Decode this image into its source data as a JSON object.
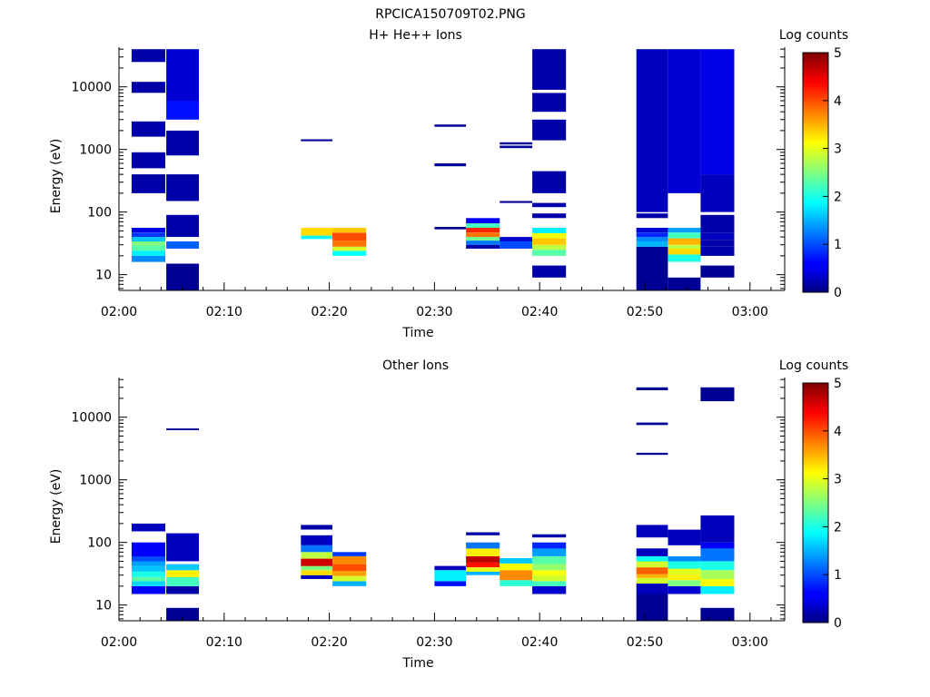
{
  "figure": {
    "title": "RPCICA150709T02.PNG"
  },
  "chart_data": [
    {
      "type": "heatmap",
      "title": "H+ He++ Ions",
      "xlabel": "Time",
      "ylabel": "Energy (eV)",
      "xticks": [
        "02:00",
        "02:10",
        "02:20",
        "02:30",
        "02:40",
        "02:50",
        "03:00"
      ],
      "xlim_min": [
        0,
        63.3
      ],
      "yscale": "log",
      "ylim": [
        5.6,
        43000
      ],
      "yticks": [
        10,
        100,
        1000,
        10000
      ],
      "yticklabels": [
        "10",
        "100",
        "1000",
        "10000"
      ],
      "colorbar": {
        "label": "Log counts",
        "range": [
          0,
          5
        ],
        "ticks": [
          "0",
          "1",
          "2",
          "3",
          "4",
          "5"
        ]
      },
      "columns": [
        {
          "t": [
            1.2,
            4.4
          ],
          "cells": [
            [
              16,
              20,
              1.3
            ],
            [
              20,
              24,
              1.8
            ],
            [
              24,
              29,
              2.3
            ],
            [
              29,
              34,
              2.5
            ],
            [
              34,
              40,
              1.6
            ],
            [
              40,
              47,
              0.9
            ],
            [
              47,
              56,
              0.5
            ],
            [
              200,
              400,
              0.2
            ],
            [
              500,
              900,
              0.2
            ],
            [
              1600,
              2800,
              0.2
            ],
            [
              8000,
              12000,
              0.2
            ],
            [
              25000,
              40000,
              0.2
            ]
          ]
        },
        {
          "t": [
            4.5,
            7.6
          ],
          "cells": [
            [
              5.6,
              15,
              0.1
            ],
            [
              26,
              34,
              1.1
            ],
            [
              40,
              90,
              0.2
            ],
            [
              150,
              400,
              0.2
            ],
            [
              800,
              2000,
              0.2
            ],
            [
              3000,
              6000,
              0.7
            ],
            [
              6000,
              40000,
              0.4
            ]
          ]
        },
        {
          "t": [
            17.3,
            20.3
          ],
          "cells": [
            [
              37,
              42,
              1.9
            ],
            [
              42,
              56,
              3.3
            ],
            [
              1350,
              1450,
              0.1
            ]
          ]
        },
        {
          "t": [
            20.3,
            23.5
          ],
          "cells": [
            [
              20,
              24,
              1.9
            ],
            [
              24,
              28,
              2.9
            ],
            [
              28,
              35,
              3.8
            ],
            [
              35,
              47,
              4.0
            ],
            [
              47,
              56,
              3.4
            ]
          ]
        },
        {
          "t": [
            30.0,
            33.0
          ],
          "cells": [
            [
              53,
              58,
              0.1
            ],
            [
              540,
              600,
              0.1
            ],
            [
              2300,
              2500,
              0.1
            ]
          ]
        },
        {
          "t": [
            33.0,
            36.2
          ],
          "cells": [
            [
              26,
              30,
              0.2
            ],
            [
              30,
              35,
              1.2
            ],
            [
              35,
              40,
              2.4
            ],
            [
              40,
              47,
              3.8
            ],
            [
              47,
              56,
              4.2
            ],
            [
              56,
              66,
              2.2
            ],
            [
              66,
              80,
              0.6
            ]
          ]
        },
        {
          "t": [
            36.2,
            39.3
          ],
          "cells": [
            [
              26,
              34,
              1.0
            ],
            [
              34,
              40,
              0.4
            ],
            [
              140,
              150,
              0.1
            ],
            [
              1050,
              1150,
              0.1
            ],
            [
              1200,
              1300,
              0.1
            ]
          ]
        },
        {
          "t": [
            39.3,
            42.5
          ],
          "cells": [
            [
              9,
              14,
              0.2
            ],
            [
              20,
              25,
              2.3
            ],
            [
              25,
              30,
              2.8
            ],
            [
              30,
              38,
              3.4
            ],
            [
              38,
              46,
              3.1
            ],
            [
              46,
              56,
              1.8
            ],
            [
              80,
              95,
              0.2
            ],
            [
              120,
              140,
              0.2
            ],
            [
              200,
              450,
              0.2
            ],
            [
              1400,
              3000,
              0.2
            ],
            [
              4000,
              8000,
              0.2
            ],
            [
              9000,
              40000,
              0.2
            ]
          ]
        },
        {
          "t": [
            49.2,
            52.2
          ],
          "cells": [
            [
              5.6,
              15,
              0.1
            ],
            [
              15,
              28,
              0.1
            ],
            [
              28,
              34,
              1.5
            ],
            [
              34,
              40,
              1.3
            ],
            [
              40,
              47,
              0.8
            ],
            [
              47,
              56,
              0.4
            ],
            [
              80,
              95,
              0.2
            ],
            [
              100,
              40000,
              0.3
            ]
          ]
        },
        {
          "t": [
            52.2,
            55.3
          ],
          "cells": [
            [
              5.6,
              9,
              0.1
            ],
            [
              16,
              21,
              2.0
            ],
            [
              21,
              26,
              3.3
            ],
            [
              26,
              30,
              2.8
            ],
            [
              30,
              38,
              3.5
            ],
            [
              38,
              47,
              2.2
            ],
            [
              47,
              56,
              1.4
            ],
            [
              200,
              40000,
              0.4
            ]
          ]
        },
        {
          "t": [
            55.3,
            58.5
          ],
          "cells": [
            [
              9,
              14,
              0.1
            ],
            [
              20,
              28,
              0.2
            ],
            [
              28,
              36,
              0.2
            ],
            [
              36,
              47,
              0.3
            ],
            [
              47,
              90,
              0.2
            ],
            [
              100,
              400,
              0.3
            ],
            [
              400,
              40000,
              0.5
            ]
          ]
        }
      ]
    },
    {
      "type": "heatmap",
      "title": "Other Ions",
      "xlabel": "Time",
      "ylabel": "Energy (eV)",
      "xticks": [
        "02:00",
        "02:10",
        "02:20",
        "02:30",
        "02:40",
        "02:50",
        "03:00"
      ],
      "xlim_min": [
        0,
        63.3
      ],
      "yscale": "log",
      "ylim": [
        5.6,
        43000
      ],
      "yticks": [
        10,
        100,
        1000,
        10000
      ],
      "yticklabels": [
        "10",
        "100",
        "1000",
        "10000"
      ],
      "colorbar": {
        "label": "Log counts",
        "range": [
          0,
          5
        ],
        "ticks": [
          "0",
          "1",
          "2",
          "3",
          "4",
          "5"
        ]
      },
      "columns": [
        {
          "t": [
            1.2,
            4.4
          ],
          "cells": [
            [
              15,
              20,
              0.6
            ],
            [
              20,
              24,
              1.7
            ],
            [
              24,
              28,
              2.3
            ],
            [
              28,
              34,
              2.0
            ],
            [
              34,
              42,
              1.6
            ],
            [
              42,
              50,
              1.4
            ],
            [
              50,
              60,
              1.0
            ],
            [
              60,
              100,
              0.6
            ],
            [
              150,
              200,
              0.3
            ]
          ]
        },
        {
          "t": [
            4.5,
            7.6
          ],
          "cells": [
            [
              5.6,
              9,
              0.1
            ],
            [
              15,
              20,
              0.2
            ],
            [
              20,
              28,
              2.2
            ],
            [
              28,
              36,
              3.2
            ],
            [
              36,
              45,
              1.6
            ],
            [
              50,
              140,
              0.3
            ],
            [
              6200,
              6600,
              0.1
            ]
          ]
        },
        {
          "t": [
            17.3,
            20.3
          ],
          "cells": [
            [
              26,
              30,
              0.3
            ],
            [
              30,
              36,
              3.3
            ],
            [
              36,
              42,
              2.5
            ],
            [
              42,
              55,
              4.6
            ],
            [
              55,
              70,
              2.8
            ],
            [
              70,
              90,
              1.2
            ],
            [
              90,
              130,
              0.3
            ],
            [
              160,
              190,
              0.2
            ]
          ]
        },
        {
          "t": [
            20.3,
            23.5
          ],
          "cells": [
            [
              20,
              24,
              1.5
            ],
            [
              24,
              29,
              2.9
            ],
            [
              29,
              35,
              3.6
            ],
            [
              35,
              45,
              4.0
            ],
            [
              45,
              60,
              3.7
            ],
            [
              60,
              70,
              0.9
            ]
          ]
        },
        {
          "t": [
            30.0,
            33.0
          ],
          "cells": [
            [
              20,
              24,
              0.7
            ],
            [
              24,
              36,
              1.8
            ],
            [
              36,
              42,
              0.3
            ]
          ]
        },
        {
          "t": [
            33.0,
            36.2
          ],
          "cells": [
            [
              30,
              34,
              1.5
            ],
            [
              34,
              40,
              3.0
            ],
            [
              40,
              48,
              4.3
            ],
            [
              48,
              60,
              4.7
            ],
            [
              60,
              80,
              3.2
            ],
            [
              80,
              100,
              1.2
            ],
            [
              130,
              145,
              0.2
            ]
          ]
        },
        {
          "t": [
            36.2,
            39.3
          ],
          "cells": [
            [
              20,
              25,
              2.1
            ],
            [
              25,
              36,
              3.7
            ],
            [
              36,
              46,
              3.1
            ],
            [
              46,
              56,
              1.6
            ]
          ]
        },
        {
          "t": [
            39.3,
            42.5
          ],
          "cells": [
            [
              15,
              20,
              0.4
            ],
            [
              20,
              24,
              2.2
            ],
            [
              24,
              30,
              2.9
            ],
            [
              30,
              36,
              3.1
            ],
            [
              36,
              45,
              2.6
            ],
            [
              45,
              60,
              2.3
            ],
            [
              60,
              80,
              1.4
            ],
            [
              80,
              100,
              0.8
            ],
            [
              120,
              135,
              0.2
            ]
          ]
        },
        {
          "t": [
            49.2,
            52.2
          ],
          "cells": [
            [
              5.6,
              15,
              0.1
            ],
            [
              15,
              22,
              0.3
            ],
            [
              22,
              27,
              2.9
            ],
            [
              27,
              31,
              3.5
            ],
            [
              31,
              40,
              3.9
            ],
            [
              40,
              50,
              2.9
            ],
            [
              50,
              60,
              1.9
            ],
            [
              60,
              80,
              0.3
            ],
            [
              120,
              190,
              0.3
            ],
            [
              2500,
              2700,
              0.1
            ],
            [
              7500,
              8200,
              0.1
            ],
            [
              27000,
              30000,
              0.1
            ]
          ]
        },
        {
          "t": [
            52.2,
            55.3
          ],
          "cells": [
            [
              15,
              20,
              0.4
            ],
            [
              20,
              25,
              2.5
            ],
            [
              25,
              30,
              3.2
            ],
            [
              30,
              38,
              3.0
            ],
            [
              38,
              50,
              2.0
            ],
            [
              50,
              60,
              1.3
            ],
            [
              90,
              160,
              0.3
            ]
          ]
        },
        {
          "t": [
            55.3,
            58.5
          ],
          "cells": [
            [
              5.6,
              9,
              0.1
            ],
            [
              15,
              20,
              1.8
            ],
            [
              20,
              26,
              3.1
            ],
            [
              26,
              36,
              2.7
            ],
            [
              36,
              50,
              2.0
            ],
            [
              50,
              80,
              1.2
            ],
            [
              80,
              100,
              0.6
            ],
            [
              100,
              270,
              0.3
            ],
            [
              18000,
              30000,
              0.1
            ]
          ]
        }
      ]
    }
  ]
}
